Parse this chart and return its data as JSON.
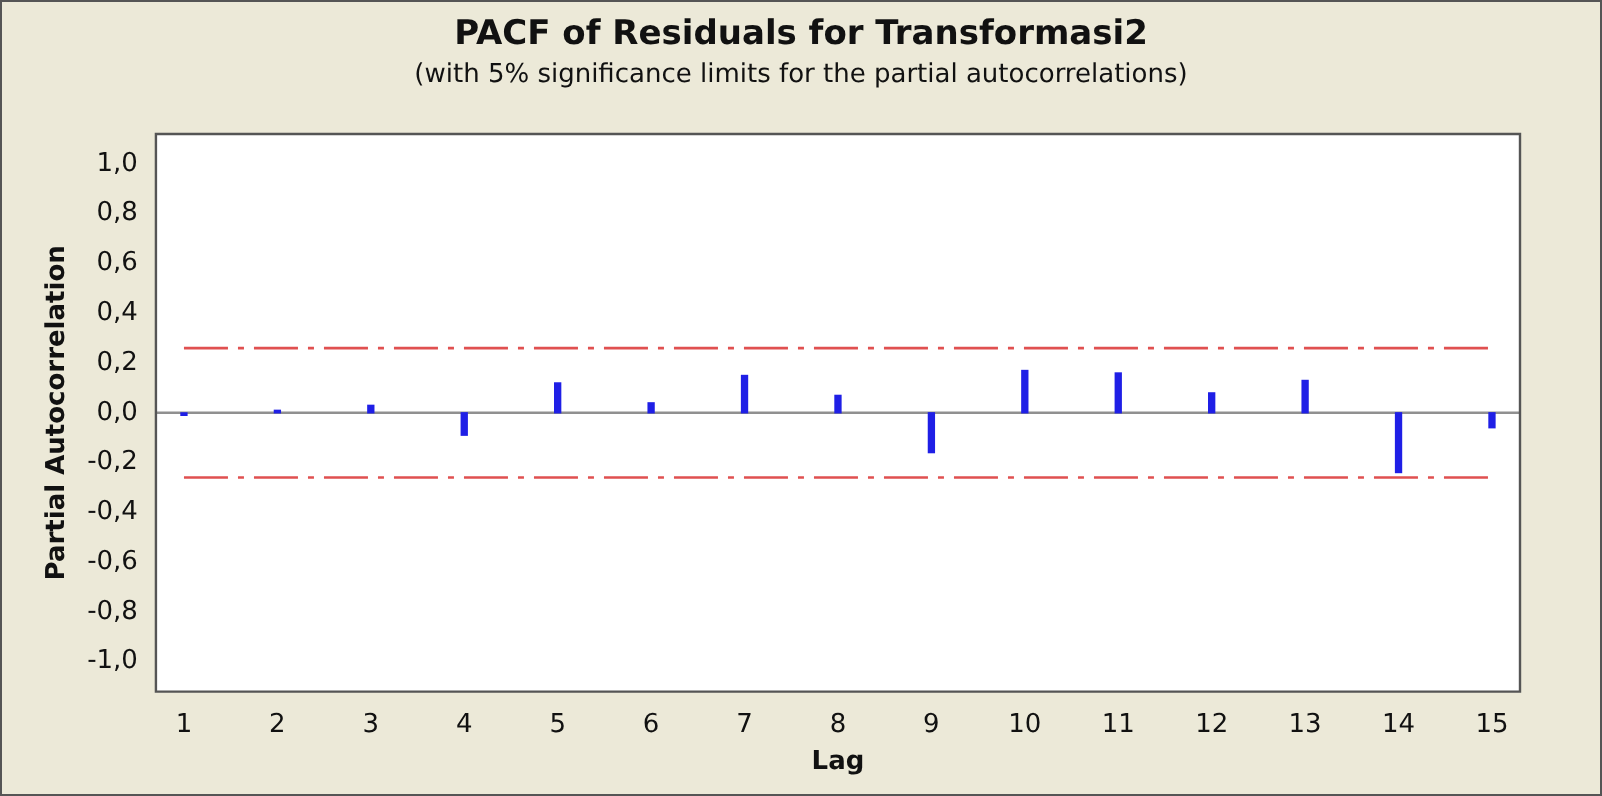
{
  "chart_data": {
    "type": "bar",
    "title": "PACF of Residuals for Transformasi2",
    "subtitle": "(with 5% significance limits for the partial autocorrelations)",
    "xlabel": "Lag",
    "ylabel": "Partial Autocorrelation",
    "x": [
      1,
      2,
      3,
      4,
      5,
      6,
      7,
      8,
      9,
      10,
      11,
      12,
      13,
      14,
      15
    ],
    "values": [
      -0.01,
      0.01,
      0.03,
      -0.09,
      0.12,
      0.04,
      0.15,
      0.07,
      -0.16,
      0.17,
      0.16,
      0.08,
      0.13,
      -0.24,
      -0.06
    ],
    "color": "#1f1fe6",
    "xlim": [
      0.7,
      15.3
    ],
    "xticks": [
      1,
      2,
      3,
      4,
      5,
      6,
      7,
      8,
      9,
      10,
      11,
      12,
      13,
      14,
      15
    ],
    "ylim": [
      -1.12,
      1.12
    ],
    "yticks": [
      {
        "value": -1,
        "label": "-1,0"
      },
      {
        "value": -0.8,
        "label": "-0,8"
      },
      {
        "value": -0.6,
        "label": "-0,6"
      },
      {
        "value": -0.4,
        "label": "-0,4"
      },
      {
        "value": -0.2,
        "label": "-0,2"
      },
      {
        "value": 0,
        "label": "0,0"
      },
      {
        "value": 0.2,
        "label": "0,2"
      },
      {
        "value": 0.4,
        "label": "0,4"
      },
      {
        "value": 0.6,
        "label": "0,6"
      },
      {
        "value": 0.8,
        "label": "0,8"
      },
      {
        "value": 1,
        "label": "1,0"
      }
    ],
    "ref_lines": [
      {
        "axis": "y",
        "value": 0.26,
        "color": "#e05050",
        "line_style": "dashdot"
      },
      {
        "axis": "y",
        "value": -0.26,
        "color": "#e05050",
        "line_style": "dashdot"
      },
      {
        "axis": "y",
        "value": 0,
        "color": "#909090",
        "line_style": "solid"
      }
    ],
    "grid": false,
    "legend": false
  }
}
